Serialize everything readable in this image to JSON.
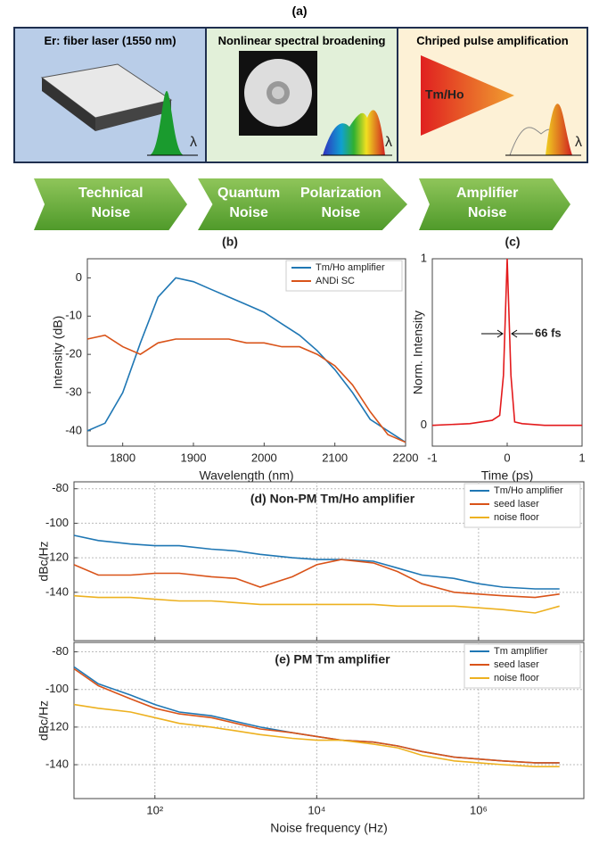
{
  "panel_a": {
    "label": "(a)",
    "boxes": [
      {
        "title": "Er: fiber laser (1550 nm)",
        "axis_symbol": "λ"
      },
      {
        "title": "Nonlinear spectral broadening",
        "axis_symbol": "λ"
      },
      {
        "title": "Chriped pulse amplification",
        "gain_label": "Tm/Ho",
        "axis_symbol": "λ"
      }
    ],
    "arrows": [
      [
        "Technical Noise"
      ],
      [
        "Quantum Noise",
        "Polarization Noise"
      ],
      [
        "Amplifier Noise"
      ]
    ]
  },
  "chart_data": [
    {
      "type": "line",
      "panel_label": "(b)",
      "xlabel": "Wavelength (nm)",
      "ylabel": "Intensity (dB)",
      "x": [
        1750,
        1775,
        1800,
        1825,
        1850,
        1875,
        1900,
        1925,
        1950,
        1975,
        2000,
        2025,
        2050,
        2075,
        2100,
        2125,
        2150,
        2175,
        2200
      ],
      "series": [
        {
          "name": "Tm/Ho amplifier",
          "color": "#1f77b4",
          "values": [
            -40,
            -38,
            -30,
            -17,
            -5,
            0,
            -1,
            -3,
            -5,
            -7,
            -9,
            -12,
            -15,
            -19,
            -24,
            -30,
            -37,
            -40,
            -43
          ]
        },
        {
          "name": "ANDi SC",
          "color": "#d95319",
          "values": [
            -16,
            -15,
            -18,
            -20,
            -17,
            -16,
            -16,
            -16,
            -16,
            -17,
            -17,
            -18,
            -18,
            -20,
            -23,
            -28,
            -35,
            -41,
            -43
          ]
        }
      ],
      "xlim": [
        1750,
        2200
      ],
      "xticks": [
        1800,
        1900,
        2000,
        2100,
        2200
      ],
      "ylim": [
        -44,
        5
      ],
      "yticks": [
        0,
        -10,
        -20,
        -30,
        -40
      ],
      "grid": false,
      "legend": "top-right"
    },
    {
      "type": "line",
      "panel_label": "(c)",
      "xlabel": "Time (ps)",
      "ylabel": "Norm. Intensity",
      "annotation": "66 fs",
      "x": [
        -1,
        -0.5,
        -0.2,
        -0.1,
        -0.05,
        0,
        0.05,
        0.1,
        0.2,
        0.5,
        1
      ],
      "series": [
        {
          "color": "#e31a1c",
          "values": [
            0,
            0.01,
            0.03,
            0.06,
            0.3,
            1,
            0.3,
            0.02,
            0.01,
            0,
            0
          ]
        }
      ],
      "xlim": [
        -1,
        1
      ],
      "xticks": [
        -1,
        0,
        1
      ],
      "ylim": [
        -0.125,
        1
      ],
      "yticks": [
        0,
        1
      ],
      "grid": false
    },
    {
      "type": "line",
      "title": "(d) Non-PM Tm/Ho amplifier",
      "ylabel": "dBc/Hz",
      "xscale": "log",
      "show_xtick_labels": false,
      "x": [
        10,
        20,
        50,
        100,
        200,
        500,
        1000,
        2000,
        5000,
        10000,
        20000,
        50000,
        100000,
        200000,
        500000,
        1000000,
        2000000,
        5000000,
        10000000
      ],
      "series": [
        {
          "name": "Tm/Ho amplifier",
          "color": "#1f77b4",
          "values": [
            -107,
            -110,
            -112,
            -113,
            -113,
            -115,
            -116,
            -118,
            -120,
            -121,
            -121,
            -122,
            -126,
            -130,
            -132,
            -135,
            -137,
            -138,
            -138
          ]
        },
        {
          "name": "seed laser",
          "color": "#d95319",
          "values": [
            -124,
            -130,
            -130,
            -129,
            -129,
            -131,
            -132,
            -137,
            -131,
            -124,
            -121,
            -123,
            -128,
            -135,
            -140,
            -141,
            -142,
            -143,
            -141
          ]
        },
        {
          "name": "noise floor",
          "color": "#edb120",
          "values": [
            -142,
            -143,
            -143,
            -144,
            -145,
            -145,
            -146,
            -147,
            -147,
            -147,
            -147,
            -147,
            -148,
            -148,
            -148,
            -149,
            -150,
            -152,
            -148
          ]
        }
      ],
      "xlim": [
        10,
        20000000
      ],
      "xticks": [
        100,
        10000,
        1000000
      ],
      "ylim": [
        -168,
        -76
      ],
      "yticks": [
        -80,
        -100,
        -120,
        -140
      ],
      "grid": true,
      "legend": "top-right"
    },
    {
      "type": "line",
      "title": "(e) PM Tm amplifier",
      "xlabel": "Noise frequency (Hz)",
      "ylabel": "dBc/Hz",
      "xscale": "log",
      "show_xtick_labels": true,
      "x": [
        10,
        20,
        50,
        100,
        200,
        500,
        1000,
        2000,
        5000,
        10000,
        20000,
        50000,
        100000,
        200000,
        500000,
        1000000,
        2000000,
        5000000,
        10000000
      ],
      "series": [
        {
          "name": "Tm amplifier",
          "color": "#1f77b4",
          "values": [
            -88,
            -97,
            -103,
            -108,
            -112,
            -114,
            -117,
            -120,
            -123,
            -125,
            -127,
            -128,
            -130,
            -133,
            -136,
            -137,
            -138,
            -139,
            -139
          ]
        },
        {
          "name": "seed laser",
          "color": "#d95319",
          "values": [
            -89,
            -98,
            -105,
            -110,
            -113,
            -115,
            -118,
            -121,
            -123,
            -125,
            -127,
            -128,
            -130,
            -133,
            -136,
            -137,
            -138,
            -139,
            -139
          ]
        },
        {
          "name": "noise floor",
          "color": "#edb120",
          "values": [
            -108,
            -110,
            -112,
            -115,
            -118,
            -120,
            -122,
            -124,
            -126,
            -127,
            -127,
            -129,
            -131,
            -135,
            -138,
            -139,
            -140,
            -141,
            -141
          ]
        }
      ],
      "xlim": [
        10,
        20000000
      ],
      "xticks": [
        {
          "value": 100,
          "label": "10²"
        },
        {
          "value": 10000,
          "label": "10⁴"
        },
        {
          "value": 1000000,
          "label": "10⁶"
        }
      ],
      "ylim": [
        -158,
        -75
      ],
      "yticks": [
        -80,
        -100,
        -120,
        -140
      ],
      "grid": true,
      "legend": "top-right"
    }
  ]
}
